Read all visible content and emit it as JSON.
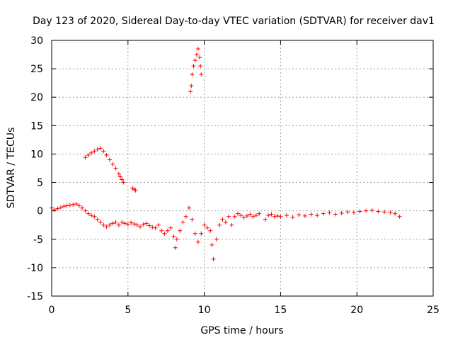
{
  "chart_data": {
    "type": "scatter",
    "title": "Day 123 of 2020, Sidereal Day-to-day VTEC variation (SDTVAR) for receiver dav1",
    "xlabel": "GPS time / hours",
    "ylabel": "SDTVAR / TECUs",
    "xlim": [
      0,
      25
    ],
    "ylim": [
      -15,
      30
    ],
    "grid": true,
    "marker": "+",
    "color": "#ff0000",
    "xticks": [
      "0",
      "5",
      "10",
      "15",
      "20",
      "25"
    ],
    "yticks": [
      "-15",
      "-10",
      "-5",
      "0",
      "5",
      "10",
      "15",
      "20",
      "25",
      "30"
    ],
    "series": [
      {
        "name": "dav1",
        "x": [
          0.0,
          0.2,
          0.4,
          0.6,
          0.8,
          1.0,
          1.2,
          1.4,
          1.6,
          1.8,
          2.0,
          2.2,
          2.4,
          2.6,
          2.8,
          3.0,
          3.2,
          3.4,
          3.6,
          3.8,
          4.0,
          4.2,
          4.4,
          4.6,
          4.8,
          5.0,
          5.2,
          5.4,
          5.6,
          5.8,
          6.0,
          6.2,
          6.4,
          6.6,
          6.8,
          7.0,
          7.2,
          7.4,
          7.6,
          7.8,
          8.0,
          8.1,
          8.2,
          8.4,
          8.6,
          8.8,
          9.0,
          9.2,
          9.4,
          9.6,
          9.8,
          10.0,
          10.2,
          10.4,
          10.5,
          10.6,
          10.8,
          11.0,
          11.2,
          11.4,
          11.6,
          11.8,
          12.0,
          12.2,
          12.4,
          12.6,
          12.8,
          13.0,
          13.2,
          13.4,
          13.6,
          14.0,
          14.2,
          14.4,
          14.6,
          14.8,
          15.0,
          15.4,
          15.8,
          16.2,
          16.6,
          17.0,
          17.4,
          17.8,
          18.2,
          18.6,
          19.0,
          19.4,
          19.8,
          20.2,
          20.6,
          21.0,
          21.4,
          21.8,
          22.2,
          22.5,
          22.8,
          2.2,
          2.4,
          2.6,
          2.8,
          3.0,
          3.2,
          3.4,
          3.6,
          3.8,
          4.0,
          4.2,
          4.4,
          4.5,
          4.6,
          4.7,
          5.3,
          5.4,
          5.5,
          9.1,
          9.15,
          9.2,
          9.3,
          9.4,
          9.5,
          9.6,
          9.7,
          9.75,
          9.8
        ],
        "y": [
          0.5,
          0.2,
          0.4,
          0.6,
          0.8,
          0.9,
          1.0,
          1.1,
          1.2,
          0.9,
          0.5,
          0.0,
          -0.5,
          -0.8,
          -1.0,
          -1.5,
          -2.0,
          -2.5,
          -2.8,
          -2.5,
          -2.2,
          -2.0,
          -2.5,
          -2.0,
          -2.2,
          -2.4,
          -2.1,
          -2.3,
          -2.5,
          -2.8,
          -2.4,
          -2.2,
          -2.6,
          -2.9,
          -3.0,
          -2.5,
          -3.5,
          -4.0,
          -3.5,
          -3.0,
          -4.5,
          -6.5,
          -5.0,
          -3.5,
          -2.0,
          -1.0,
          0.5,
          -1.5,
          -4.0,
          -5.5,
          -4.0,
          -2.5,
          -3.0,
          -3.5,
          -6.0,
          -8.5,
          -5.0,
          -2.5,
          -1.5,
          -2.0,
          -1.0,
          -2.5,
          -1.0,
          -0.5,
          -0.8,
          -1.2,
          -0.9,
          -0.6,
          -1.0,
          -0.8,
          -0.5,
          -1.5,
          -0.8,
          -0.6,
          -1.0,
          -0.9,
          -1.0,
          -0.8,
          -1.1,
          -0.7,
          -0.9,
          -0.6,
          -0.8,
          -0.5,
          -0.3,
          -0.6,
          -0.4,
          -0.2,
          -0.3,
          -0.1,
          0.0,
          0.1,
          -0.1,
          -0.2,
          -0.3,
          -0.5,
          -1.0,
          9.4,
          9.8,
          10.2,
          10.5,
          10.8,
          11.0,
          10.5,
          9.8,
          9.0,
          8.2,
          7.5,
          6.5,
          6.0,
          5.5,
          5.0,
          4.0,
          3.8,
          3.6,
          21.0,
          22.0,
          24.0,
          25.5,
          26.5,
          27.5,
          28.5,
          27.0,
          25.5,
          24.0
        ]
      }
    ]
  }
}
